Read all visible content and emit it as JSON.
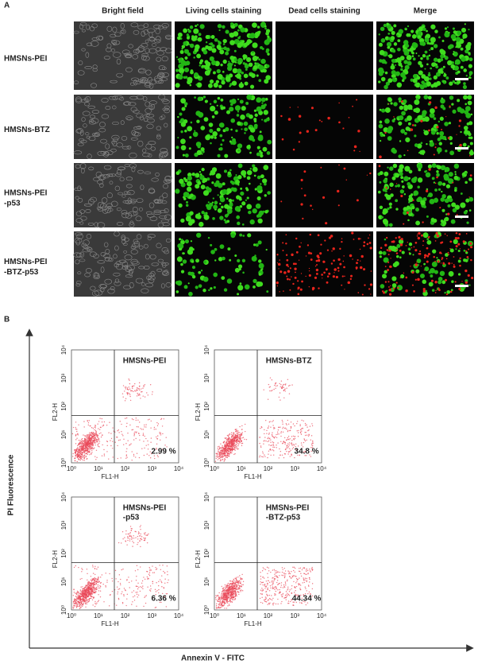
{
  "panel_a": {
    "label": "A",
    "columns": [
      "Bright field",
      "Living cells staining",
      "Dead cells staining",
      "Merge"
    ],
    "rows": [
      {
        "label": [
          "HMSNs-PEI"
        ]
      },
      {
        "label": [
          "HMSNs-BTZ"
        ]
      },
      {
        "label": [
          "HMSNs-PEI",
          "-p53"
        ]
      },
      {
        "label": [
          "HMSNs-PEI",
          "-BTZ-p53"
        ]
      }
    ]
  },
  "panel_b": {
    "label": "B",
    "y_axis": "PI Fluorescence",
    "x_axis": "Annexin V - FITC",
    "ticks": [
      "10⁰",
      "10¹",
      "10²",
      "10³",
      "10⁴"
    ],
    "plots": [
      {
        "label": [
          "HMSNs-PEI"
        ],
        "percent": "2.99 %",
        "x_axis": "FL1-H",
        "y_axis": "FL2-H"
      },
      {
        "label": [
          "HMSNs-BTZ"
        ],
        "percent": "34.8 %",
        "x_axis": "FL1-H",
        "y_axis": "FL2-H"
      },
      {
        "label": [
          "HMSNs-PEI",
          "-p53"
        ],
        "percent": "6.36 %",
        "x_axis": "FL1-H",
        "y_axis": "FL2-H"
      },
      {
        "label": [
          "HMSNs-PEI",
          "-BTZ-p53"
        ],
        "percent": "44.34 %",
        "x_axis": "FL1-H",
        "y_axis": "FL2-H"
      }
    ]
  }
}
